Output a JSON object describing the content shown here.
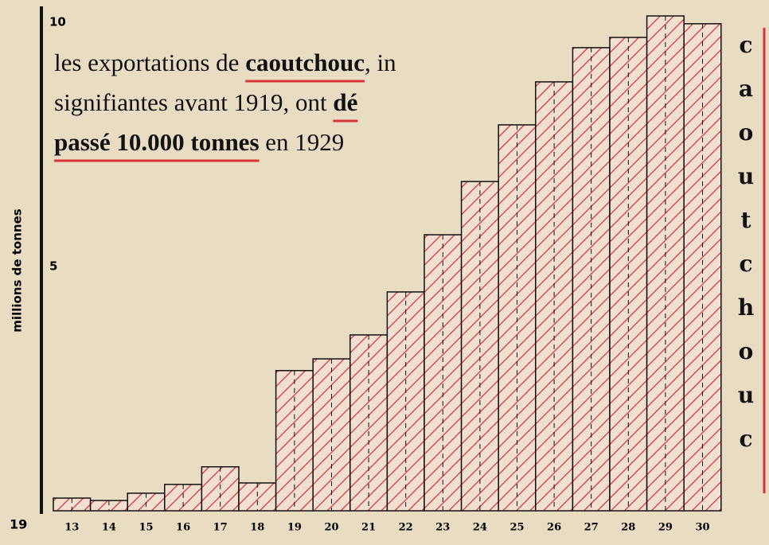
{
  "chart_data": {
    "type": "bar",
    "title_lines": [
      [
        "les exportations de ",
        "caoutchouc",
        ", in"
      ],
      [
        "signifiantes avant 1919, ont ",
        "dé"
      ],
      [
        "passé 10.000 tonnes",
        " en 1929"
      ]
    ],
    "y_label": "millions de tonnes",
    "x_prefix": "19",
    "side_label": "caoutchouc",
    "categories": [
      "13",
      "14",
      "15",
      "16",
      "17",
      "18",
      "19",
      "20",
      "21",
      "22",
      "23",
      "24",
      "25",
      "26",
      "27",
      "28",
      "29",
      "30"
    ],
    "values": [
      0.26,
      0.21,
      0.36,
      0.54,
      0.9,
      0.57,
      2.87,
      3.11,
      3.6,
      4.48,
      5.65,
      6.74,
      7.9,
      8.78,
      9.48,
      9.69,
      10.13,
      9.97
    ],
    "color": "#d8343a",
    "ylim": [
      0,
      10
    ],
    "yticks": [
      5,
      10
    ],
    "grid": false
  }
}
